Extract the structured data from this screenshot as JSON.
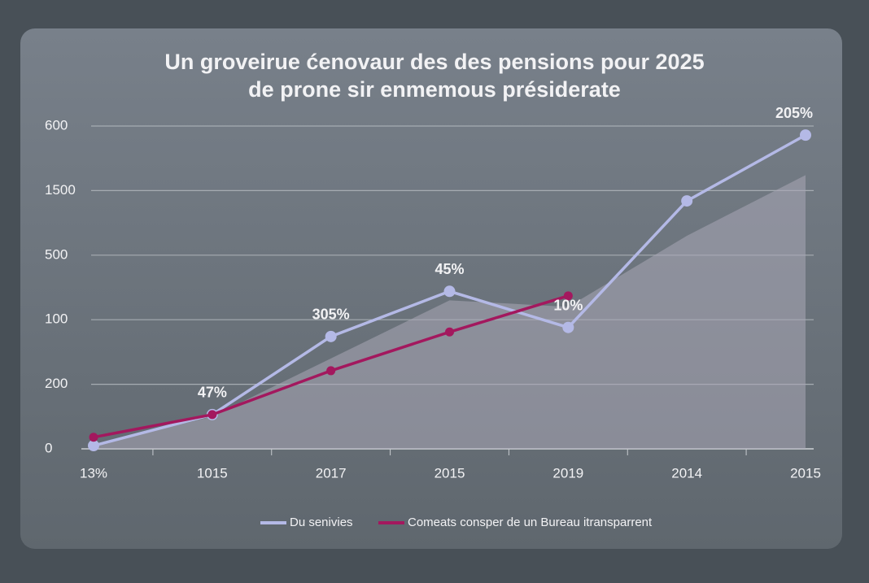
{
  "chart_data": {
    "type": "line",
    "title": [
      "Un groveirue ćenovaur des des pensions pour  2025",
      "de prone sir enmemous présiderate"
    ],
    "categories": [
      "13%",
      "1015",
      "2017",
      "2015",
      "2019",
      "2014",
      "2015"
    ],
    "series": [
      {
        "name": "Du senivies",
        "color": "#b4b9e6",
        "values": [
          0.05,
          0.53,
          1.74,
          2.44,
          1.88,
          3.84,
          4.86
        ]
      },
      {
        "name": "Comeats consper de un Bureau itransparrent",
        "color": "#a3185e",
        "values": [
          0.18,
          0.53,
          1.21,
          1.81,
          2.37,
          null,
          null
        ]
      },
      {
        "color": "#a9a8b6",
        "values": [
          0.05,
          0.5,
          1.4,
          2.3,
          2.2,
          3.3,
          4.24
        ],
        "style": "area"
      }
    ],
    "annotations": [
      "47%",
      "305%",
      "45%",
      "10%",
      "205%"
    ],
    "ylim": [
      0,
      5
    ],
    "yticks": [
      {
        "value": 0,
        "label": "0"
      },
      {
        "value": 1,
        "label": "200"
      },
      {
        "value": 2,
        "label": "100"
      },
      {
        "value": 3,
        "label": "500"
      },
      {
        "value": 4,
        "label": "1500"
      },
      {
        "value": 5,
        "label": "600"
      }
    ],
    "grid": true
  }
}
